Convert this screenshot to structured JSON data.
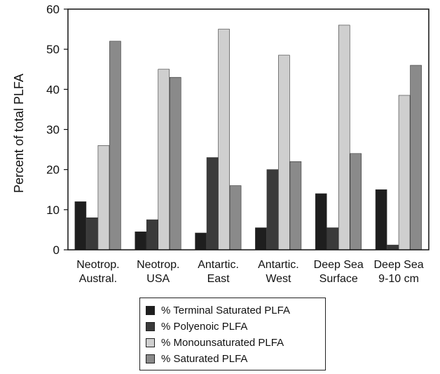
{
  "chart_data": {
    "type": "bar",
    "ylabel": "Percent of total PLFA",
    "ylim": [
      0,
      60
    ],
    "yticks": [
      0,
      10,
      20,
      30,
      40,
      50,
      60
    ],
    "categories": [
      [
        "Neotrop.",
        "Austral."
      ],
      [
        "Neotrop.",
        "USA"
      ],
      [
        "Antartic.",
        "East"
      ],
      [
        "Antartic.",
        "West"
      ],
      [
        "Deep Sea",
        "Surface"
      ],
      [
        "Deep Sea",
        "9-10 cm"
      ]
    ],
    "series": [
      {
        "name": "% Terminal Saturated PLFA",
        "color": "#1e1e1e",
        "values": [
          12,
          4.5,
          4.2,
          5.5,
          14,
          15
        ]
      },
      {
        "name": "% Polyenoic PLFA",
        "color": "#3a3a3a",
        "values": [
          8,
          7.5,
          23,
          20,
          5.5,
          1.2
        ]
      },
      {
        "name": "% Monounsaturated PLFA",
        "color": "#cfcfcf",
        "values": [
          26,
          45,
          55,
          48.5,
          56,
          38.5
        ]
      },
      {
        "name": "% Saturated PLFA",
        "color": "#8a8a8a",
        "values": [
          52,
          43,
          16,
          22,
          24,
          46
        ]
      }
    ],
    "legend_position": "bottom-center",
    "grid": false
  }
}
